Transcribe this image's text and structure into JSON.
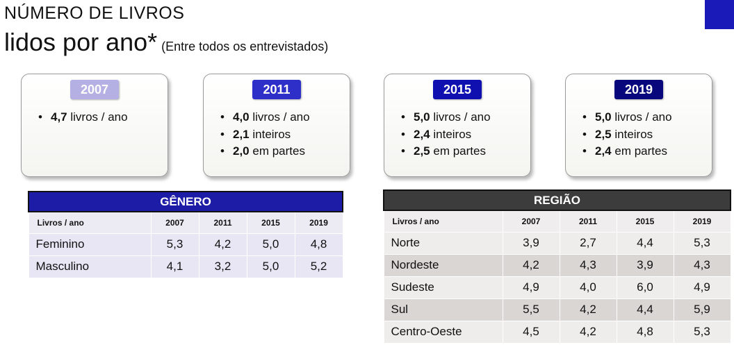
{
  "title": {
    "line1": "NÚMERO DE LIVROS",
    "line2": "lidos por ano*",
    "subtitle": "(Entre todos os entrevistados)"
  },
  "colors": {
    "corner": "#1a1ab8",
    "gender_header": "#1c1ca6",
    "region_header": "#3c3c3c",
    "year_2007": "#b4b0e4",
    "year_2011": "#2e2ec8",
    "year_2015": "#1010b0",
    "year_2019": "#08087c"
  },
  "cards": [
    {
      "year": "2007",
      "items": [
        {
          "value": "4,7",
          "text": " livros / ano"
        }
      ]
    },
    {
      "year": "2011",
      "items": [
        {
          "value": "4,0",
          "text": " livros / ano"
        },
        {
          "value": "2,1",
          "text": " inteiros"
        },
        {
          "value": "2,0",
          "text": " em partes"
        }
      ]
    },
    {
      "year": "2015",
      "items": [
        {
          "value": "5,0",
          "text": "  livros / ano"
        },
        {
          "value": "2,4",
          "text": " inteiros"
        },
        {
          "value": "2,5",
          "text": " em partes"
        }
      ]
    },
    {
      "year": "2019",
      "items": [
        {
          "value": "5,0",
          "text": "  livros / ano"
        },
        {
          "value": "2,5",
          "text": " inteiros"
        },
        {
          "value": "2,4",
          "text": " em partes"
        }
      ]
    }
  ],
  "gender": {
    "title": "GÊNERO",
    "columns": [
      "Livros / ano",
      "2007",
      "2011",
      "2015",
      "2019"
    ],
    "rows": [
      [
        "Feminino",
        "5,3",
        "4,2",
        "5,0",
        "4,8"
      ],
      [
        "Masculino",
        "4,1",
        "3,2",
        "5,0",
        "5,2"
      ]
    ]
  },
  "region": {
    "title": "REGIÃO",
    "columns": [
      "Livros / ano",
      "2007",
      "2011",
      "2015",
      "2019"
    ],
    "rows": [
      [
        "Norte",
        "3,9",
        "2,7",
        "4,4",
        "5,3"
      ],
      [
        "Nordeste",
        "4,2",
        "4,3",
        "3,9",
        "4,3"
      ],
      [
        "Sudeste",
        "4,9",
        "4,0",
        "6,0",
        "4,9"
      ],
      [
        "Sul",
        "5,5",
        "4,2",
        "4,4",
        "5,9"
      ],
      [
        "Centro-Oeste",
        "4,5",
        "4,2",
        "4,8",
        "5,3"
      ]
    ]
  }
}
